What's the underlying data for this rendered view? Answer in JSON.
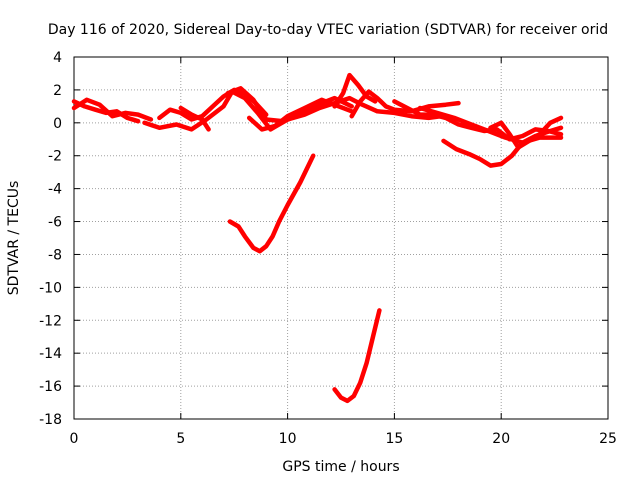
{
  "chart_data": {
    "type": "line",
    "title": "Day 116 of 2020, Sidereal Day-to-day VTEC variation (SDTVAR) for receiver orid",
    "xlabel": "GPS time / hours",
    "ylabel": "SDTVAR / TECUs",
    "xlim": [
      0,
      25
    ],
    "ylim": [
      -18,
      4
    ],
    "x_ticks": [
      0,
      5,
      10,
      15,
      20,
      25
    ],
    "y_ticks": [
      4,
      2,
      0,
      -2,
      -4,
      -6,
      -8,
      -10,
      -12,
      -14,
      -16,
      -18
    ],
    "grid": true,
    "legend": "none",
    "color": "#ff0000",
    "series": [
      {
        "x": [
          0.0,
          0.5,
          1.0,
          1.5,
          2.0,
          2.5,
          3.0
        ],
        "y": [
          1.3,
          1.0,
          0.8,
          0.6,
          0.7,
          0.3,
          0.1
        ]
      },
      {
        "x": [
          0.0,
          0.6,
          1.2,
          1.8,
          2.4,
          3.0,
          3.6
        ],
        "y": [
          0.9,
          1.4,
          1.1,
          0.4,
          0.6,
          0.5,
          0.2
        ]
      },
      {
        "x": [
          3.3,
          4.0,
          4.8,
          5.5,
          6.2,
          7.0,
          7.4,
          8.0,
          8.6,
          9.2,
          10.0,
          10.8,
          11.5,
          12.2,
          12.9,
          13.5,
          14.2,
          15.0,
          15.8,
          16.6,
          17.2
        ],
        "y": [
          0.0,
          -0.3,
          -0.1,
          -0.4,
          0.2,
          1.0,
          1.9,
          1.5,
          0.6,
          -0.4,
          0.2,
          0.5,
          0.9,
          1.2,
          1.5,
          1.1,
          0.7,
          0.6,
          0.4,
          0.3,
          0.4
        ]
      },
      {
        "x": [
          4.0,
          4.5,
          5.0,
          5.5,
          6.0,
          6.5,
          7.0,
          7.5,
          8.0,
          8.5,
          9.0
        ],
        "y": [
          0.3,
          0.8,
          0.6,
          0.2,
          0.4,
          1.0,
          1.6,
          2.0,
          1.8,
          1.2,
          0.5
        ]
      },
      {
        "x": [
          5.0,
          5.5,
          6.0,
          6.3
        ],
        "y": [
          0.9,
          0.5,
          0.2,
          -0.4
        ]
      },
      {
        "x": [
          7.2,
          7.8,
          8.4,
          9.0,
          9.8,
          10.6,
          11.4,
          12.2,
          13.0
        ],
        "y": [
          1.8,
          2.1,
          1.4,
          0.2,
          0.1,
          0.5,
          1.1,
          1.5,
          1.0
        ]
      },
      {
        "x": [
          8.2,
          8.8,
          9.4,
          10.0,
          10.8,
          11.6,
          12.4,
          13.0
        ],
        "y": [
          0.3,
          -0.4,
          -0.2,
          0.4,
          0.9,
          1.4,
          1.0,
          0.7
        ]
      },
      {
        "x": [
          12.2,
          12.6,
          12.9,
          13.3,
          13.7,
          14.1
        ],
        "y": [
          1.0,
          1.8,
          2.9,
          2.3,
          1.6,
          1.3
        ]
      },
      {
        "x": [
          13.0,
          13.4,
          13.8,
          14.2,
          14.6,
          15.0,
          15.8,
          16.6,
          17.4,
          18.0
        ],
        "y": [
          0.4,
          1.3,
          1.9,
          1.5,
          1.0,
          0.8,
          0.7,
          1.0,
          1.1,
          1.2
        ]
      },
      {
        "x": [
          15.0,
          15.6,
          16.2,
          16.8,
          17.4,
          18.0,
          18.6,
          19.2,
          19.8,
          20.4,
          21.0,
          21.6,
          22.2,
          22.8
        ],
        "y": [
          1.3,
          0.9,
          0.5,
          0.5,
          0.3,
          -0.1,
          -0.3,
          -0.5,
          -0.4,
          -1.0,
          -0.8,
          -0.4,
          -0.5,
          -0.7
        ]
      },
      {
        "x": [
          16.2,
          17.0,
          17.8,
          18.6,
          19.4,
          20.2,
          21.0,
          21.8,
          22.8
        ],
        "y": [
          0.9,
          0.6,
          0.3,
          -0.1,
          -0.5,
          -0.9,
          -1.2,
          -0.9,
          -0.9
        ]
      },
      {
        "x": [
          17.3,
          17.9,
          18.5,
          19.0,
          19.5,
          20.0,
          20.5,
          21.0,
          21.6,
          22.3,
          22.8
        ],
        "y": [
          -1.1,
          -1.6,
          -1.9,
          -2.2,
          -2.6,
          -2.5,
          -2.0,
          -1.2,
          -0.8,
          -0.5,
          -0.3
        ]
      },
      {
        "x": [
          19.5,
          20.0,
          20.4,
          20.8,
          21.3,
          21.8,
          22.3,
          22.8
        ],
        "y": [
          -0.3,
          0.0,
          -0.7,
          -1.5,
          -1.1,
          -0.7,
          0.0,
          0.3
        ]
      },
      {
        "x": [
          7.3,
          7.7,
          8.0,
          8.4,
          8.7,
          9.0,
          9.3,
          9.6,
          10.0,
          10.3,
          10.6,
          10.9,
          11.2
        ],
        "y": [
          -6.0,
          -6.3,
          -6.9,
          -7.6,
          -7.8,
          -7.5,
          -6.9,
          -6.0,
          -5.0,
          -4.3,
          -3.6,
          -2.8,
          -2.0
        ]
      },
      {
        "x": [
          12.2,
          12.5,
          12.8,
          13.1,
          13.4,
          13.7,
          14.0,
          14.3
        ],
        "y": [
          -16.2,
          -16.7,
          -16.9,
          -16.6,
          -15.8,
          -14.6,
          -13.0,
          -11.4
        ]
      }
    ]
  }
}
